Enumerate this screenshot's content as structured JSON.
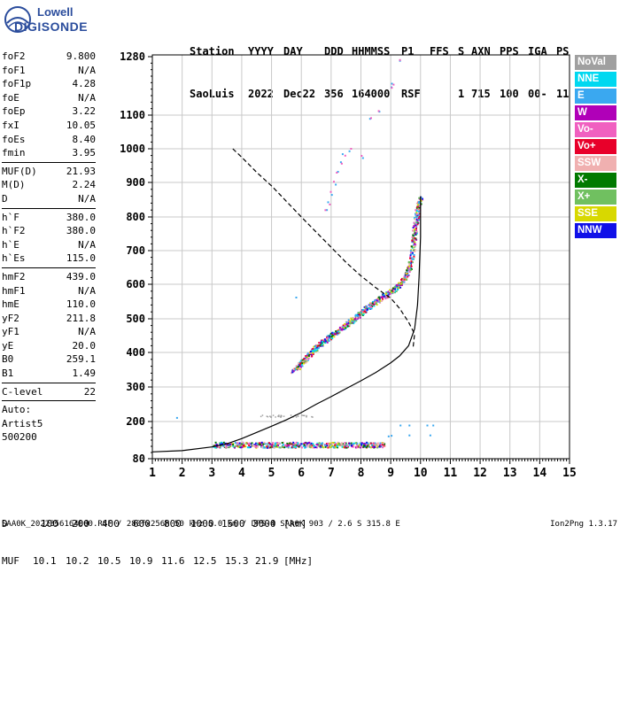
{
  "logo": {
    "line1": "Lowell",
    "line2": "DIGISONDE"
  },
  "header": {
    "labels": [
      "Station",
      "YYYY",
      "DAY",
      "DDD",
      "HHMMSS",
      "P1",
      "FFS",
      "S",
      "AXN",
      "PPS",
      "IGA",
      "PS"
    ],
    "values": [
      "SaoLuis",
      "2022",
      "Dec22",
      "356",
      "164000",
      "RSF",
      "1",
      "715",
      "100",
      "00-",
      "11"
    ]
  },
  "params_group1": [
    {
      "name": "foF2",
      "value": "9.800"
    },
    {
      "name": "foF1",
      "value": "N/A"
    },
    {
      "name": "foF1p",
      "value": "4.28"
    },
    {
      "name": "foE",
      "value": "N/A"
    },
    {
      "name": "foEp",
      "value": "3.22"
    },
    {
      "name": "fxI",
      "value": "10.05"
    },
    {
      "name": "foEs",
      "value": "8.40"
    },
    {
      "name": "fmin",
      "value": "3.95"
    }
  ],
  "params_group2": [
    {
      "name": "MUF(D)",
      "value": "21.93"
    },
    {
      "name": "M(D)",
      "value": "2.24"
    },
    {
      "name": "D",
      "value": "N/A"
    }
  ],
  "params_group3": [
    {
      "name": "h`F",
      "value": "380.0"
    },
    {
      "name": "h`F2",
      "value": "380.0"
    },
    {
      "name": "h`E",
      "value": "N/A"
    },
    {
      "name": "h`Es",
      "value": "115.0"
    }
  ],
  "params_group4": [
    {
      "name": "hmF2",
      "value": "439.0"
    },
    {
      "name": "hmF1",
      "value": "N/A"
    },
    {
      "name": "hmE",
      "value": "110.0"
    },
    {
      "name": "yF2",
      "value": "211.8"
    },
    {
      "name": "yF1",
      "value": "N/A"
    },
    {
      "name": "yE",
      "value": "20.0"
    },
    {
      "name": "B0",
      "value": "259.1"
    },
    {
      "name": "B1",
      "value": "1.49"
    }
  ],
  "params_group5": [
    {
      "name": "C-level",
      "value": "22"
    }
  ],
  "auto_info": [
    "Auto:",
    "Artist5",
    "500200"
  ],
  "legend": [
    {
      "label": "NoVal",
      "color": "#a0a0a0"
    },
    {
      "label": "NNE",
      "color": "#00d8f0"
    },
    {
      "label": "E",
      "color": "#3aa8f0"
    },
    {
      "label": "W",
      "color": "#b000b8"
    },
    {
      "label": "Vo-",
      "color": "#f060c0"
    },
    {
      "label": "Vo+",
      "color": "#e8002a"
    },
    {
      "label": "SSW",
      "color": "#f0b0b0"
    },
    {
      "label": "X-",
      "color": "#007a00"
    },
    {
      "label": "X+",
      "color": "#70c060"
    },
    {
      "label": "SSE",
      "color": "#d8d800"
    },
    {
      "label": "NNW",
      "color": "#1010e8"
    }
  ],
  "muf_table": {
    "d_label": "D",
    "d_values": [
      "100",
      "200",
      "400",
      "600",
      "800",
      "1000",
      "1500",
      "3000"
    ],
    "d_unit": "[km]",
    "muf_label": "MUF",
    "muf_values": [
      "10.1",
      "10.2",
      "10.5",
      "10.9",
      "11.6",
      "12.5",
      "15.3",
      "21.9"
    ],
    "muf_unit": "[MHz]"
  },
  "footer": "SAA0K_2022356164000.RSF / 280fx256h 50 kHz 5.0 km / DPS-4 SAA0K 903 / 2.6 S 315.8 E",
  "version": "Ion2Png 1.3.17",
  "chart_data": {
    "type": "scatter",
    "xlim": [
      1,
      15
    ],
    "ylim": [
      80,
      1280
    ],
    "x_ticks": [
      1,
      2,
      3,
      4,
      5,
      6,
      7,
      8,
      9,
      10,
      11,
      12,
      13,
      14,
      15
    ],
    "y_ticks": [
      80,
      200,
      300,
      400,
      500,
      600,
      700,
      800,
      900,
      1000,
      1100,
      1280
    ],
    "grid": true,
    "legend_position": "right",
    "virtual_height_curve": [
      [
        1,
        102
      ],
      [
        2,
        106
      ],
      [
        3,
        118
      ],
      [
        3.5,
        128
      ],
      [
        4,
        145
      ],
      [
        4.5,
        165
      ],
      [
        5,
        185
      ],
      [
        5.5,
        205
      ],
      [
        6,
        226
      ],
      [
        6.5,
        250
      ],
      [
        7,
        272
      ],
      [
        7.5,
        295
      ],
      [
        8,
        318
      ],
      [
        8.5,
        342
      ],
      [
        9,
        370
      ],
      [
        9.3,
        390
      ],
      [
        9.6,
        420
      ],
      [
        9.8,
        470
      ],
      [
        9.9,
        540
      ],
      [
        9.95,
        620
      ],
      [
        10.0,
        740
      ],
      [
        10.0,
        860
      ]
    ],
    "true_height_profile": [
      [
        3.7,
        1000
      ],
      [
        4.0,
        975
      ],
      [
        4.5,
        930
      ],
      [
        5,
        890
      ],
      [
        5.5,
        845
      ],
      [
        6,
        800
      ],
      [
        6.5,
        755
      ],
      [
        7,
        710
      ],
      [
        7.5,
        665
      ],
      [
        8,
        625
      ],
      [
        8.5,
        590
      ],
      [
        9,
        560
      ],
      [
        9.3,
        530
      ],
      [
        9.6,
        490
      ],
      [
        9.8,
        455
      ],
      [
        9.75,
        415
      ]
    ],
    "o_trace": [
      [
        5.7,
        348
      ],
      [
        5.9,
        362
      ],
      [
        6.1,
        380
      ],
      [
        6.3,
        400
      ],
      [
        6.5,
        418
      ],
      [
        6.7,
        432
      ],
      [
        6.9,
        446
      ],
      [
        7.1,
        458
      ],
      [
        7.3,
        470
      ],
      [
        7.5,
        484
      ],
      [
        7.7,
        498
      ],
      [
        7.9,
        512
      ],
      [
        8.1,
        526
      ],
      [
        8.3,
        540
      ],
      [
        8.5,
        552
      ],
      [
        8.7,
        564
      ],
      [
        8.9,
        575
      ],
      [
        9.1,
        586
      ],
      [
        9.3,
        600
      ],
      [
        9.5,
        625
      ],
      [
        9.6,
        650
      ],
      [
        9.7,
        690
      ],
      [
        9.75,
        730
      ],
      [
        9.8,
        770
      ],
      [
        9.85,
        800
      ],
      [
        9.9,
        830
      ],
      [
        10.0,
        860
      ]
    ],
    "x_trace_upper": [
      [
        6.8,
        820
      ],
      [
        6.9,
        840
      ],
      [
        7.0,
        870
      ],
      [
        7.1,
        900
      ],
      [
        7.2,
        930
      ],
      [
        7.3,
        960
      ],
      [
        7.4,
        985
      ],
      [
        7.6,
        1000
      ],
      [
        8.0,
        980
      ],
      [
        8.3,
        1090
      ],
      [
        8.6,
        1110
      ],
      [
        9.0,
        1190
      ],
      [
        9.05,
        1200
      ],
      [
        9.3,
        1270
      ]
    ],
    "es_trace_x_range": [
      3.0,
      8.8
    ],
    "es_trace_y_range": [
      118,
      135
    ]
  }
}
